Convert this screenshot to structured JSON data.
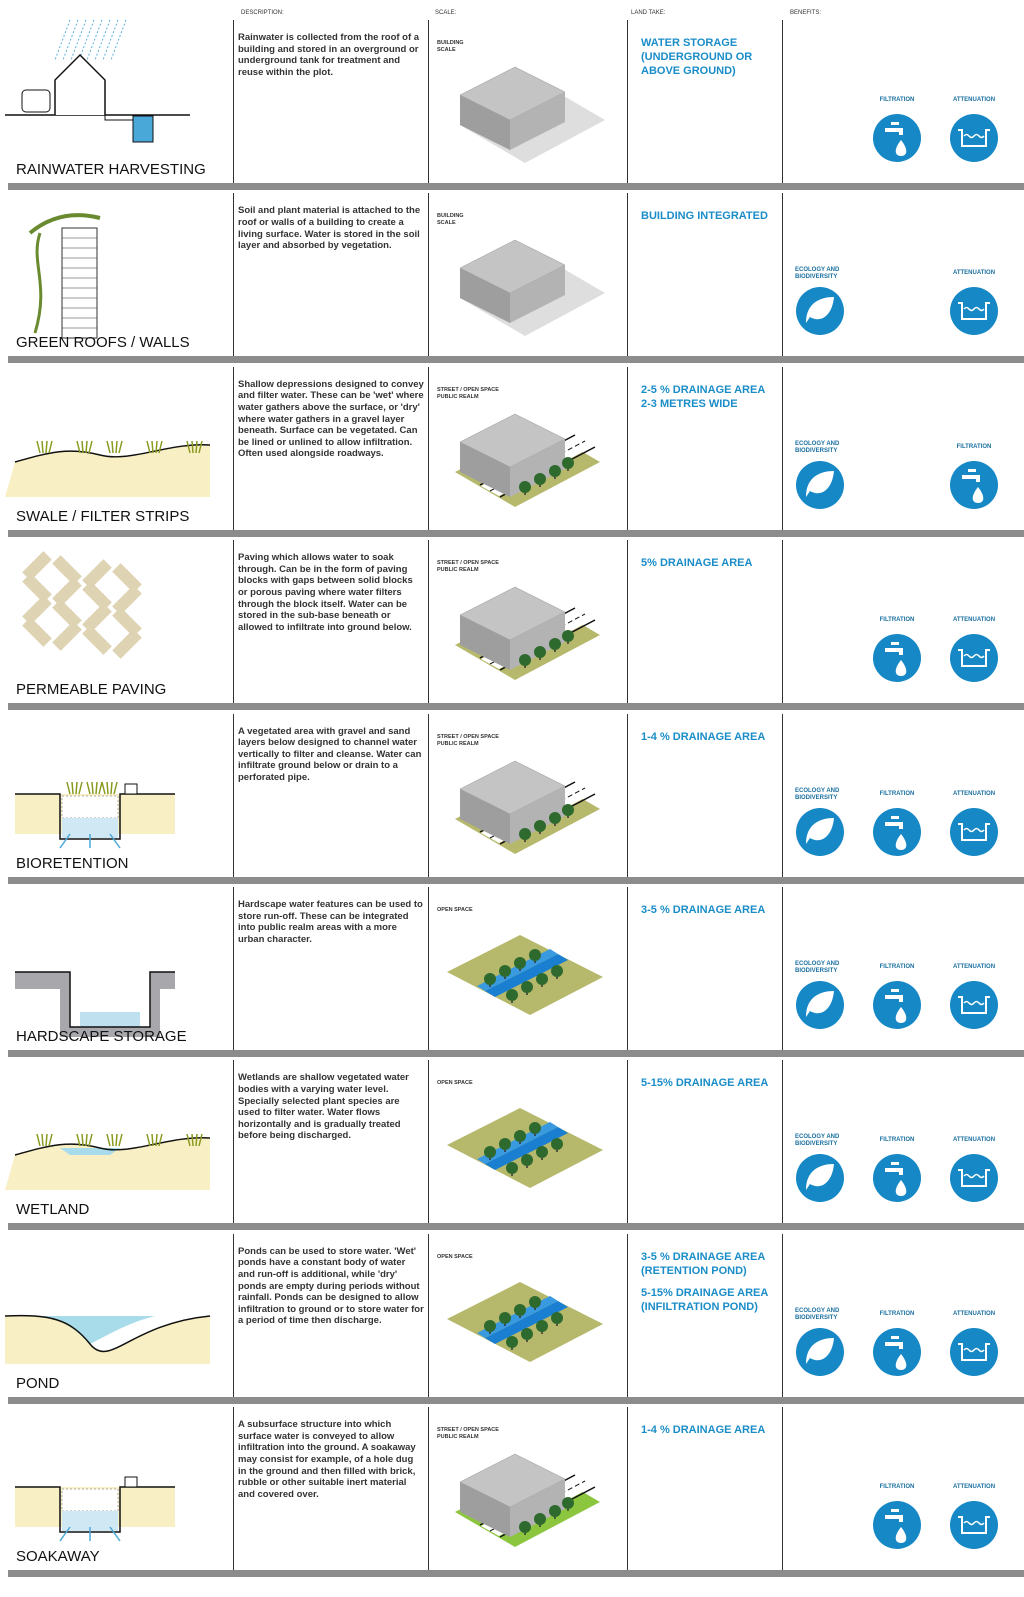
{
  "header": {
    "description": "DESCRIPTION:",
    "scale": "SCALE:",
    "land_take": "LAND TAKE:",
    "benefits": "BENEFITS:"
  },
  "benefit_names": {
    "ecology": "ECOLOGY AND BIODIVERSITY",
    "filtration": "FILTRATION",
    "attenuation": "ATTENUATION"
  },
  "rows": [
    {
      "name": "RAINWATER HARVESTING",
      "description": "Rainwater is collected from the roof of a building and stored in an overground or underground tank for treatment and reuse within the plot.",
      "scale": [
        "BUILDING",
        "SCALE"
      ],
      "land_take": [
        "WATER STORAGE (UNDERGROUND OR ABOVE GROUND)"
      ],
      "benefits": [
        "filtration",
        "attenuation"
      ]
    },
    {
      "name": "GREEN ROOFS / WALLS",
      "description": "Soil and plant material is attached to the roof or walls of a building to create a living surface. Water is stored in the soil layer and absorbed by vegetation.",
      "scale": [
        "BUILDING",
        "SCALE"
      ],
      "land_take": [
        "BUILDING INTEGRATED"
      ],
      "benefits": [
        "ecology",
        "attenuation"
      ]
    },
    {
      "name": "SWALE / FILTER STRIPS",
      "description": "Shallow depressions designed to convey and filter water. These can be 'wet' where water gathers above the surface, or 'dry' where water gathers in a gravel layer beneath. Surface can be vegetated. Can be lined or unlined to allow infiltration. Often used alongside roadways.",
      "scale": [
        "STREET / OPEN SPACE",
        "PUBLIC REALM"
      ],
      "land_take": [
        "2-5 % DRAINAGE AREA",
        "2-3 METRES WIDE"
      ],
      "benefits": [
        "ecology",
        "filtration"
      ]
    },
    {
      "name": "PERMEABLE PAVING",
      "description": "Paving which allows water to soak through. Can be in the form of paving blocks with gaps between solid blocks or porous paving where water filters through the block itself. Water can be stored in the sub-base beneath or allowed to infiltrate into ground below.",
      "scale": [
        "STREET / OPEN SPACE",
        "PUBLIC REALM"
      ],
      "land_take": [
        "5% DRAINAGE AREA"
      ],
      "benefits": [
        "filtration",
        "attenuation"
      ]
    },
    {
      "name": "BIORETENTION",
      "description": "A vegetated area with gravel and sand layers below designed to channel water vertically to filter and cleanse. Water can infiltrate ground below or drain to a perforated pipe.",
      "scale": [
        "STREET / OPEN SPACE",
        "PUBLIC REALM"
      ],
      "land_take": [
        "1-4 % DRAINAGE AREA"
      ],
      "benefits": [
        "ecology",
        "filtration",
        "attenuation"
      ]
    },
    {
      "name": "HARDSCAPE STORAGE",
      "description": "Hardscape water features can be used to store run-off. These can be integrated into public realm areas with a more urban character.",
      "scale": [
        "OPEN SPACE"
      ],
      "land_take": [
        "3-5 % DRAINAGE AREA"
      ],
      "benefits": [
        "ecology",
        "filtration",
        "attenuation"
      ]
    },
    {
      "name": "WETLAND",
      "description": "Wetlands are shallow vegetated water bodies with a varying water level. Specially selected plant species are used to filter water. Water flows horizontally and is gradually treated before being discharged.",
      "scale": [
        "OPEN SPACE"
      ],
      "land_take": [
        "5-15% DRAINAGE AREA"
      ],
      "benefits": [
        "ecology",
        "filtration",
        "attenuation"
      ]
    },
    {
      "name": "POND",
      "description": "Ponds can be used to store water. 'Wet' ponds have a constant body of water and run-off is additional, while 'dry' ponds are empty during periods without rainfall. Ponds can be designed to allow infiltration to ground or to store water for a period of time then discharge.",
      "scale": [
        "OPEN SPACE"
      ],
      "land_take": [
        "3-5 % DRAINAGE AREA (RETENTION POND)",
        "5-15% DRAINAGE AREA (INFILTRATION POND)"
      ],
      "benefits": [
        "ecology",
        "filtration",
        "attenuation"
      ]
    },
    {
      "name": "SOAKAWAY",
      "description": "A subsurface structure into which surface water is conveyed to allow infiltration into the ground. A soakaway may consist for example, of a hole dug in the ground and then filled with brick, rubble or other suitable inert material and covered over.",
      "scale": [
        "STREET / OPEN SPACE",
        "PUBLIC REALM"
      ],
      "land_take": [
        "1-4 % DRAINAGE AREA"
      ],
      "benefits": [
        "filtration",
        "attenuation"
      ]
    }
  ]
}
